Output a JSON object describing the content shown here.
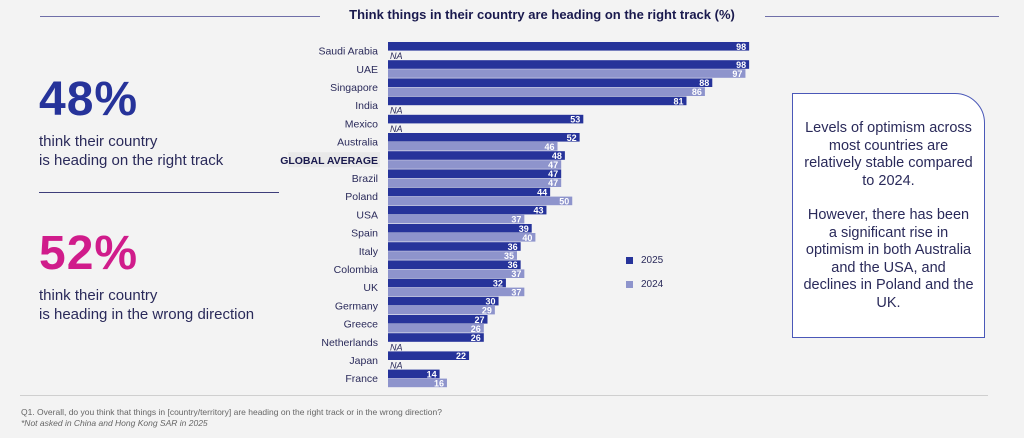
{
  "left_panel": {
    "stat1": {
      "value": "48%",
      "line1": "think their country",
      "line2": "is heading on the right track",
      "color": "#26339a"
    },
    "stat2": {
      "value": "52%",
      "line1": "think their country",
      "line2": "is heading in the wrong direction",
      "color": "#d01c8b"
    }
  },
  "callout": {
    "para1": "Levels of optimism across most countries are relatively stable compared to 2024.",
    "para2": "However, there has been a significant rise in optimism in both Australia and the USA, and declines in Poland and the UK."
  },
  "footnotes": {
    "question": "Q1. Overall, do you think that things in [country/territory] are heading on the right track or in the wrong direction?",
    "note": "*Not asked in China and Hong Kong SAR in 2025"
  },
  "chart_data": {
    "type": "bar",
    "orientation": "horizontal",
    "title": "Think things in their country are heading on the right track (%)",
    "na_label": "NA",
    "highlight_category": "GLOBAL AVERAGE",
    "categories": [
      "Saudi Arabia",
      "UAE",
      "Singapore",
      "India",
      "Mexico",
      "Australia",
      "GLOBAL AVERAGE",
      "Brazil",
      "Poland",
      "USA",
      "Spain",
      "Italy",
      "Colombia",
      "UK",
      "Germany",
      "Greece",
      "Netherlands",
      "Japan",
      "France"
    ],
    "series": [
      {
        "name": "2025",
        "color": "#26339a",
        "values": [
          98,
          98,
          88,
          81,
          53,
          52,
          48,
          47,
          44,
          43,
          39,
          36,
          36,
          32,
          30,
          27,
          26,
          22,
          14
        ]
      },
      {
        "name": "2024",
        "color": "#8e94cc",
        "values": [
          null,
          97,
          86,
          null,
          null,
          46,
          47,
          47,
          50,
          37,
          40,
          35,
          37,
          37,
          29,
          26,
          null,
          null,
          16
        ]
      }
    ],
    "xlim": [
      0,
      100
    ],
    "legend_position": "right",
    "grid": false
  }
}
